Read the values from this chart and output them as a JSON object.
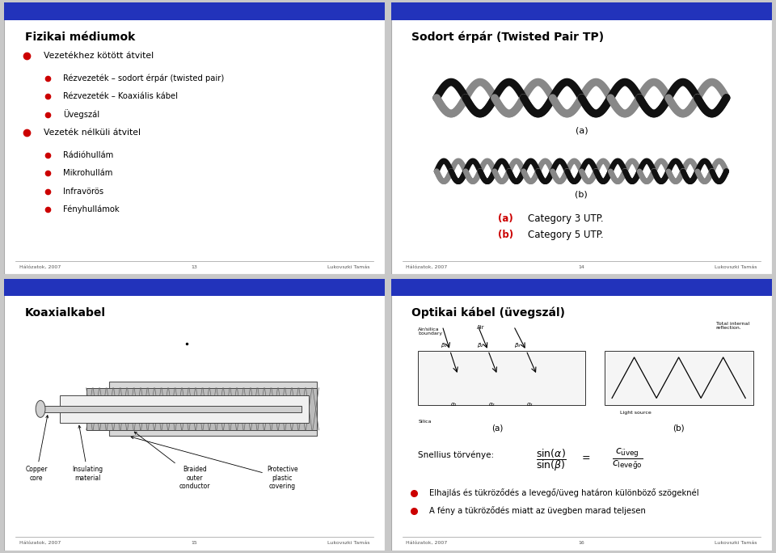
{
  "bg_color": "#c8c8c8",
  "blue_bar_color": "#2233bb",
  "red_bullet": "#cc0000",
  "slide1": {
    "title": "Fizikai médiumok",
    "items": [
      {
        "text": "Vezetékhez kötött átvitel",
        "level": 0
      },
      {
        "text": "Rézvezeték – sodort érpár (twisted pair)",
        "level": 1
      },
      {
        "text": "Rézvezeték – Koaxiális kábel",
        "level": 1
      },
      {
        "text": "Üvegszál",
        "level": 1
      },
      {
        "text": "Vezeték nélküli átvitel",
        "level": 0
      },
      {
        "text": "Rádióhullám",
        "level": 1
      },
      {
        "text": "Mikrohullám",
        "level": 1
      },
      {
        "text": "Infravörös",
        "level": 1
      },
      {
        "text": "Fényhullámok",
        "level": 1
      }
    ],
    "footer_left": "Hálózatok, 2007",
    "footer_mid": "13",
    "footer_right": "Lukovszki Tamás"
  },
  "slide2": {
    "title": "Sodort érpár (Twisted Pair TP)",
    "label_a": "(a)",
    "label_b": "(b)",
    "footer_left": "Hálózatok, 2007",
    "footer_mid": "14",
    "footer_right": "Lukovszki Tamás"
  },
  "slide3": {
    "title": "Koaxialkabel",
    "labels": [
      "Copper\ncore",
      "Insulating\nmaterial",
      "Braided\nouter\nconductor",
      "Protective\nplastic\ncovering"
    ],
    "footer_left": "Hálózatok, 2007",
    "footer_mid": "15",
    "footer_right": "Lukovszki Tamás"
  },
  "slide4": {
    "title": "Optikai kábel (üvegszál)",
    "snellius": "Snellius törvénye:",
    "bullet1": "Elhajlás és tükröződés a levegő/üveg határon különböző szögeknél",
    "bullet2": "A fény a tükröződés miatt az üvegben marad teljesen",
    "footer_left": "Hálózatok, 2007",
    "footer_mid": "16",
    "footer_right": "Lukovszki Tamás"
  }
}
